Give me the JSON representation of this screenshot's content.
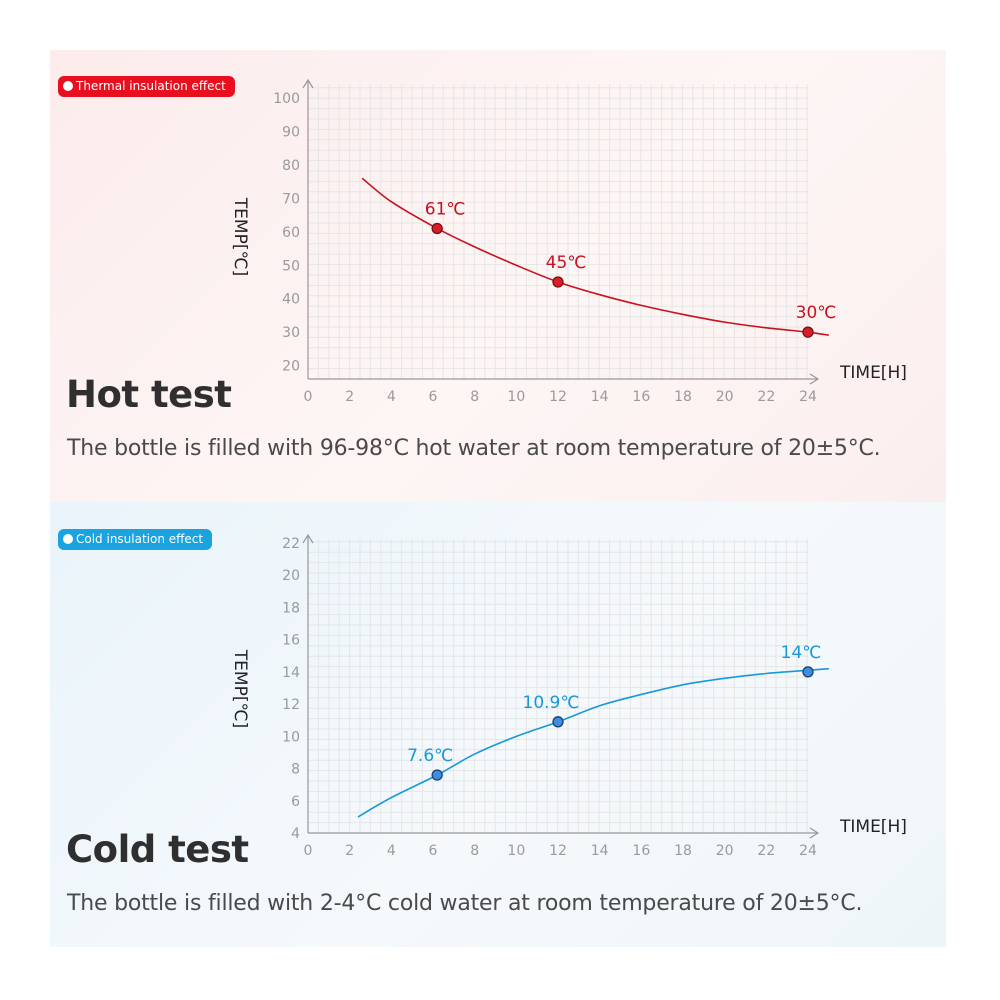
{
  "hot": {
    "badge": "Thermal insulation effect",
    "title": "Hot test",
    "description": "The bottle is filled with 96-98°C hot water at room temperature of 20±5°C.",
    "colors": {
      "line": "#c8111f",
      "point_fill": "#d81e2a",
      "point_stroke": "#7a0d12",
      "label": "#c8111f"
    }
  },
  "cold": {
    "badge": "Cold insulation effect",
    "title": "Cold test",
    "description": "The bottle is filled with 2-4°C cold water at room temperature of 20±5°C.",
    "colors": {
      "line": "#1799d8",
      "point_fill": "#3d8ee0",
      "point_stroke": "#1d3f6e",
      "label": "#1799d8"
    }
  },
  "chart_data": [
    {
      "type": "line",
      "xlabel": "TIME[H]",
      "ylabel": "TEMP[℃]",
      "x_ticks": [
        0,
        2,
        4,
        6,
        8,
        10,
        12,
        14,
        16,
        18,
        20,
        22,
        24
      ],
      "y_ticks": [
        20,
        30,
        40,
        50,
        60,
        70,
        80,
        90,
        100
      ],
      "xlim": [
        0,
        24
      ],
      "ylim": [
        16,
        100
      ],
      "grid": true,
      "curve": {
        "x": [
          2.6,
          4,
          6.2,
          8,
          10,
          12,
          14,
          16,
          18,
          20,
          22,
          24,
          25
        ],
        "y": [
          76,
          69,
          61,
          55.5,
          50,
          45,
          41.2,
          38,
          35.3,
          33,
          31.3,
          30,
          29.1
        ]
      },
      "points": [
        {
          "x": 6.2,
          "y": 61,
          "label": "61℃"
        },
        {
          "x": 12,
          "y": 45,
          "label": "45℃"
        },
        {
          "x": 24,
          "y": 30,
          "label": "30℃"
        }
      ]
    },
    {
      "type": "line",
      "xlabel": "TIME[H]",
      "ylabel": "TEMP[℃]",
      "x_ticks": [
        0,
        2,
        4,
        6,
        8,
        10,
        12,
        14,
        16,
        18,
        20,
        22,
        24
      ],
      "y_ticks": [
        4,
        6,
        8,
        10,
        12,
        14,
        16,
        18,
        20,
        22
      ],
      "xlim": [
        0,
        24
      ],
      "ylim": [
        4,
        22
      ],
      "grid": true,
      "curve": {
        "x": [
          2.4,
          4,
          6.2,
          8,
          10,
          12,
          14,
          16,
          18,
          20,
          22,
          24,
          25
        ],
        "y": [
          5,
          6.2,
          7.6,
          8.9,
          10.0,
          10.9,
          11.9,
          12.6,
          13.2,
          13.6,
          13.9,
          14.1,
          14.2
        ]
      },
      "points": [
        {
          "x": 6.2,
          "y": 7.6,
          "label": "7.6℃"
        },
        {
          "x": 12,
          "y": 10.9,
          "label": "10.9℃"
        },
        {
          "x": 24,
          "y": 14,
          "label": "14℃"
        }
      ]
    }
  ]
}
